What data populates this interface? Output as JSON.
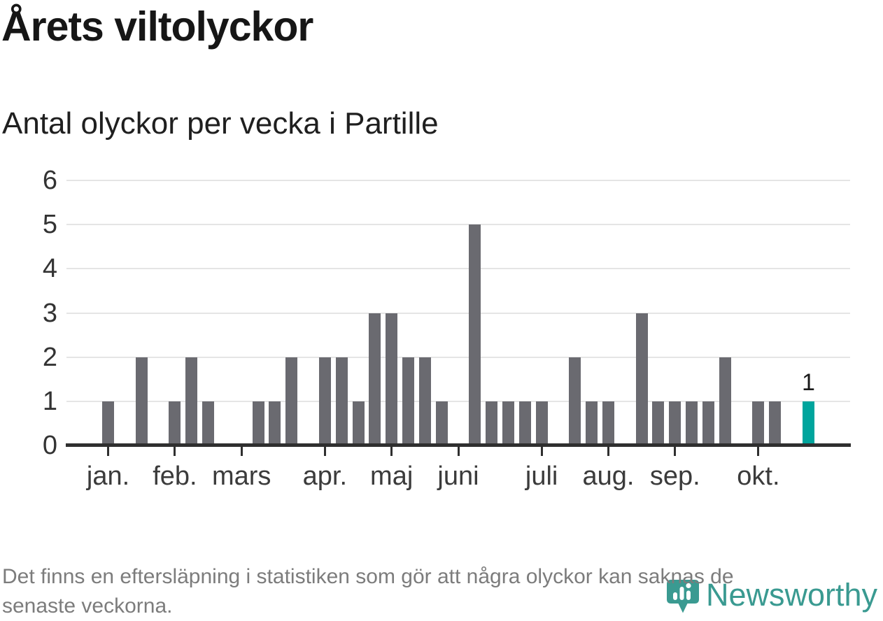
{
  "chart_data": {
    "type": "bar",
    "title": "Årets viltolyckor",
    "subtitle": "Antal olyckor per vecka i Partille",
    "xlabel": "",
    "ylabel": "",
    "ylim": [
      0,
      6
    ],
    "yticks": [
      0,
      1,
      2,
      3,
      4,
      5,
      6
    ],
    "x_unit": "week_of_year",
    "weeks_shown": 47,
    "grid": "horizontal",
    "legend": "none",
    "bar_color": "#6a6a70",
    "highlight_color": "#00a59d",
    "bars": [
      {
        "week": 3,
        "value": 1
      },
      {
        "week": 5,
        "value": 2
      },
      {
        "week": 7,
        "value": 1
      },
      {
        "week": 8,
        "value": 2
      },
      {
        "week": 9,
        "value": 1
      },
      {
        "week": 12,
        "value": 1
      },
      {
        "week": 13,
        "value": 1
      },
      {
        "week": 14,
        "value": 2
      },
      {
        "week": 16,
        "value": 2
      },
      {
        "week": 17,
        "value": 2
      },
      {
        "week": 18,
        "value": 1
      },
      {
        "week": 19,
        "value": 3
      },
      {
        "week": 20,
        "value": 3
      },
      {
        "week": 21,
        "value": 2
      },
      {
        "week": 22,
        "value": 2
      },
      {
        "week": 23,
        "value": 1
      },
      {
        "week": 25,
        "value": 5
      },
      {
        "week": 26,
        "value": 1
      },
      {
        "week": 27,
        "value": 1
      },
      {
        "week": 28,
        "value": 1
      },
      {
        "week": 29,
        "value": 1
      },
      {
        "week": 31,
        "value": 2
      },
      {
        "week": 32,
        "value": 1
      },
      {
        "week": 33,
        "value": 1
      },
      {
        "week": 35,
        "value": 3
      },
      {
        "week": 36,
        "value": 1
      },
      {
        "week": 37,
        "value": 1
      },
      {
        "week": 38,
        "value": 1
      },
      {
        "week": 39,
        "value": 1
      },
      {
        "week": 40,
        "value": 2
      },
      {
        "week": 42,
        "value": 1
      },
      {
        "week": 43,
        "value": 1
      },
      {
        "week": 45,
        "value": 1,
        "highlight": true,
        "label": "1"
      }
    ],
    "month_ticks": [
      {
        "label": "jan.",
        "week": 3
      },
      {
        "label": "feb.",
        "week": 7
      },
      {
        "label": "mars",
        "week": 11
      },
      {
        "label": "apr.",
        "week": 16
      },
      {
        "label": "maj",
        "week": 20
      },
      {
        "label": "juni",
        "week": 24
      },
      {
        "label": "juli",
        "week": 29
      },
      {
        "label": "aug.",
        "week": 33
      },
      {
        "label": "sep.",
        "week": 37
      },
      {
        "label": "okt.",
        "week": 42
      }
    ]
  },
  "footnote": {
    "lines": [
      "Det finns en eftersläpning i statistiken som gör att några olyckor kan saknas de",
      "senaste veckorna."
    ]
  },
  "logo": {
    "text": "Newsworthy",
    "color": "#3a9a91"
  },
  "colors": {
    "bar_gray": "#6a6a70",
    "bar_teal": "#00a59d",
    "grid": "#e5e5e5",
    "axis": "#2f2f2f",
    "footnote_text": "#7c7c7c",
    "logo_teal": "#3a9a91"
  }
}
